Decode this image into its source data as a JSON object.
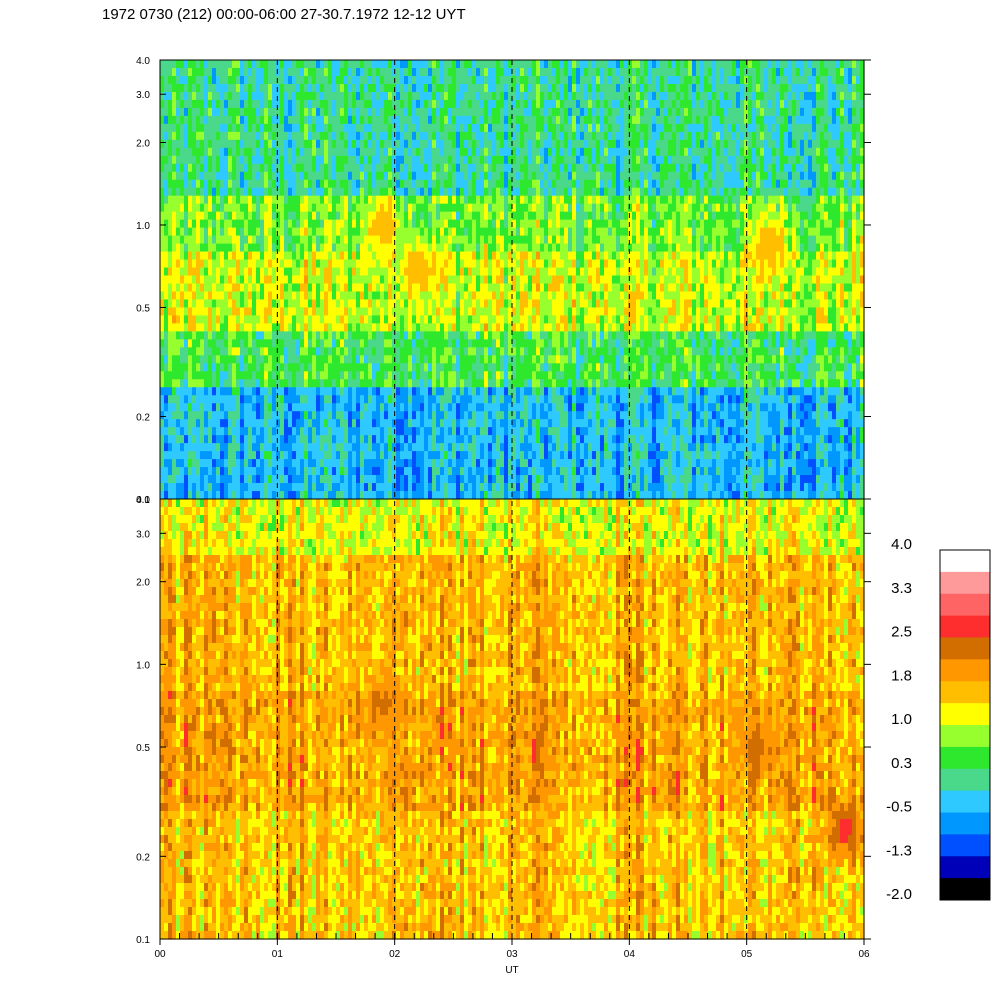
{
  "title": "1972 0730 (212) 00:00-06:00 27-30.7.1972  12-12 UYT",
  "chart_data": {
    "type": "heatmap",
    "xlabel": "UT",
    "x_ticks": [
      "00",
      "01",
      "02",
      "03",
      "04",
      "05",
      "06"
    ],
    "x_range": [
      0,
      6
    ],
    "y_ticks": [
      "0.1",
      "0.2",
      "0.5",
      "1.0",
      "2.0",
      "3.0",
      "4.0"
    ],
    "y_tick_values": [
      0.1,
      0.2,
      0.5,
      1.0,
      2.0,
      3.0,
      4.0
    ],
    "y_range": [
      0.1,
      4.0
    ],
    "y_scale": "log",
    "panels": [
      {
        "name": "upper",
        "dominant_levels": {
          "0.1-0.25": -0.5,
          "0.25-0.4": 0.3,
          "0.4-0.8": 1.0,
          "0.8-1.3": 0.6,
          "1.3-4.0": 0.0
        },
        "features": [
          {
            "x": 1.9,
            "y": 1.0,
            "level": 1.8
          },
          {
            "x": 2.2,
            "y": 0.7,
            "level": 1.8
          },
          {
            "x": 5.2,
            "y": 0.85,
            "level": 1.8
          }
        ]
      },
      {
        "name": "lower",
        "dominant_levels": {
          "0.1-0.3": 1.6,
          "0.3-0.8": 1.9,
          "0.8-2.5": 1.7,
          "2.5-4.0": 1.2
        },
        "features": [
          {
            "x": 1.9,
            "y": 0.7,
            "level": 2.3
          },
          {
            "x": 5.1,
            "y": 0.5,
            "level": 2.3
          },
          {
            "x": 5.85,
            "y": 0.25,
            "level": 2.8
          }
        ]
      }
    ],
    "vertical_dashed_lines_at": [
      1,
      2,
      3,
      4,
      5
    ],
    "colorbar": {
      "labels": [
        "4.0",
        "3.3",
        "2.5",
        "1.8",
        "1.0",
        "0.3",
        "-0.5",
        "-1.3",
        "-2.0"
      ],
      "colors_top_to_bottom": [
        "#ffffff",
        "#ff9a9a",
        "#ff6464",
        "#ff2e2e",
        "#d26e00",
        "#ff9800",
        "#ffbe00",
        "#ffff00",
        "#98ff2e",
        "#2ee82e",
        "#4ad88a",
        "#2ecaff",
        "#0098ff",
        "#0050ff",
        "#0000b8",
        "#000000"
      ]
    }
  }
}
